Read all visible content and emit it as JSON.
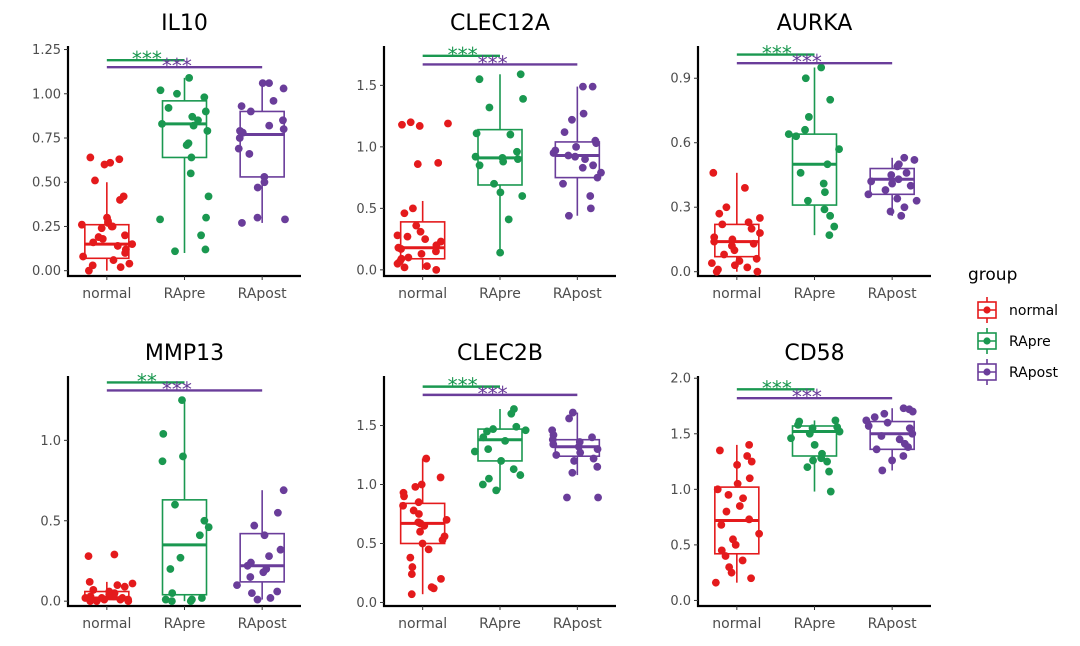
{
  "legend": {
    "title": "group",
    "items": [
      {
        "label": "normal",
        "color": "#e41a1c"
      },
      {
        "label": "RApre",
        "color": "#1a9850"
      },
      {
        "label": "RApost",
        "color": "#6a3d9a"
      }
    ]
  },
  "chart_data": [
    {
      "type": "box",
      "title": "IL10",
      "categories": [
        "normal",
        "RApre",
        "RApost"
      ],
      "ylim": [
        -0.03,
        1.27
      ],
      "yticks": [
        0.0,
        0.25,
        0.5,
        0.75,
        1.0,
        1.25
      ],
      "ytick_labels": [
        "0.00",
        "0.25",
        "0.50",
        "0.75",
        "1.00",
        "1.25"
      ],
      "boxes": [
        {
          "q1": 0.07,
          "median": 0.15,
          "q3": 0.26,
          "lower": 0.0,
          "upper": 0.5
        },
        {
          "q1": 0.64,
          "median": 0.83,
          "q3": 0.96,
          "lower": 0.1,
          "upper": 1.09
        },
        {
          "q1": 0.53,
          "median": 0.77,
          "q3": 0.9,
          "lower": 0.27,
          "upper": 1.06
        }
      ],
      "points": [
        [
          0.64,
          0.63,
          0.61,
          0.6,
          0.51,
          0.42,
          0.4,
          0.3,
          0.28,
          0.27,
          0.26,
          0.25,
          0.25,
          0.24,
          0.2,
          0.19,
          0.18,
          0.16,
          0.15,
          0.14,
          0.12,
          0.1,
          0.08,
          0.06,
          0.04,
          0.03,
          0.02,
          0.0
        ],
        [
          1.09,
          1.02,
          1.0,
          0.98,
          0.92,
          0.9,
          0.87,
          0.85,
          0.83,
          0.82,
          0.79,
          0.72,
          0.71,
          0.64,
          0.55,
          0.42,
          0.3,
          0.29,
          0.2,
          0.12,
          0.11
        ],
        [
          1.06,
          1.06,
          1.03,
          0.96,
          0.93,
          0.9,
          0.85,
          0.82,
          0.8,
          0.79,
          0.78,
          0.75,
          0.69,
          0.66,
          0.53,
          0.5,
          0.47,
          0.3,
          0.29,
          0.27
        ]
      ],
      "significance": [
        {
          "label": "***",
          "from": "normal",
          "to": "RApre",
          "y": 1.19,
          "color": "#1a9850"
        },
        {
          "label": "***",
          "from": "normal",
          "to": "RApost",
          "y": 1.15,
          "color": "#6a3d9a"
        }
      ]
    },
    {
      "type": "box",
      "title": "CLEC12A",
      "categories": [
        "normal",
        "RApre",
        "RApost"
      ],
      "ylim": [
        -0.05,
        1.82
      ],
      "yticks": [
        0.0,
        0.5,
        1.0,
        1.5
      ],
      "ytick_labels": [
        "0.0",
        "0.5",
        "1.0",
        "1.5"
      ],
      "boxes": [
        {
          "q1": 0.09,
          "median": 0.18,
          "q3": 0.39,
          "lower": 0.0,
          "upper": 0.56
        },
        {
          "q1": 0.69,
          "median": 0.91,
          "q3": 1.14,
          "lower": 0.14,
          "upper": 1.59
        },
        {
          "q1": 0.75,
          "median": 0.93,
          "q3": 1.04,
          "lower": 0.44,
          "upper": 1.49
        }
      ],
      "points": [
        [
          1.2,
          1.19,
          1.18,
          1.17,
          0.87,
          0.86,
          0.5,
          0.46,
          0.36,
          0.31,
          0.28,
          0.27,
          0.25,
          0.23,
          0.2,
          0.18,
          0.17,
          0.15,
          0.13,
          0.1,
          0.09,
          0.07,
          0.05,
          0.03,
          0.02,
          0.0
        ],
        [
          1.59,
          1.55,
          1.39,
          1.32,
          1.11,
          1.1,
          0.96,
          0.92,
          0.91,
          0.9,
          0.88,
          0.85,
          0.7,
          0.63,
          0.6,
          0.41,
          0.14
        ],
        [
          1.49,
          1.49,
          1.27,
          1.22,
          1.12,
          1.05,
          1.03,
          1.0,
          0.97,
          0.95,
          0.93,
          0.92,
          0.9,
          0.85,
          0.83,
          0.79,
          0.75,
          0.7,
          0.6,
          0.5,
          0.44
        ]
      ],
      "significance": [
        {
          "label": "***",
          "from": "normal",
          "to": "RApre",
          "y": 1.74,
          "color": "#1a9850"
        },
        {
          "label": "***",
          "from": "normal",
          "to": "RApost",
          "y": 1.67,
          "color": "#6a3d9a"
        }
      ]
    },
    {
      "type": "box",
      "title": "AURKA",
      "categories": [
        "normal",
        "RApre",
        "RApost"
      ],
      "ylim": [
        -0.02,
        1.05
      ],
      "yticks": [
        0.0,
        0.3,
        0.6,
        0.9
      ],
      "ytick_labels": [
        "0.0",
        "0.3",
        "0.6",
        "0.9"
      ],
      "boxes": [
        {
          "q1": 0.07,
          "median": 0.14,
          "q3": 0.22,
          "lower": 0.0,
          "upper": 0.46
        },
        {
          "q1": 0.31,
          "median": 0.5,
          "q3": 0.64,
          "lower": 0.17,
          "upper": 0.95
        },
        {
          "q1": 0.36,
          "median": 0.43,
          "q3": 0.48,
          "lower": 0.26,
          "upper": 0.53
        }
      ],
      "points": [
        [
          0.46,
          0.39,
          0.3,
          0.27,
          0.25,
          0.23,
          0.22,
          0.2,
          0.18,
          0.16,
          0.15,
          0.14,
          0.13,
          0.12,
          0.1,
          0.08,
          0.06,
          0.05,
          0.04,
          0.03,
          0.02,
          0.01,
          0.0,
          0.0
        ],
        [
          0.95,
          0.9,
          0.8,
          0.72,
          0.66,
          0.64,
          0.63,
          0.57,
          0.5,
          0.46,
          0.41,
          0.37,
          0.33,
          0.29,
          0.26,
          0.21,
          0.17
        ],
        [
          0.53,
          0.52,
          0.5,
          0.49,
          0.46,
          0.45,
          0.43,
          0.42,
          0.41,
          0.4,
          0.38,
          0.36,
          0.34,
          0.33,
          0.3,
          0.28,
          0.26
        ]
      ],
      "significance": [
        {
          "label": "***",
          "from": "normal",
          "to": "RApre",
          "y": 1.01,
          "color": "#1a9850"
        },
        {
          "label": "***",
          "from": "normal",
          "to": "RApost",
          "y": 0.97,
          "color": "#6a3d9a"
        }
      ]
    },
    {
      "type": "box",
      "title": "MMP13",
      "categories": [
        "normal",
        "RApre",
        "RApost"
      ],
      "ylim": [
        -0.03,
        1.4
      ],
      "yticks": [
        0.0,
        0.5,
        1.0
      ],
      "ytick_labels": [
        "0.0",
        "0.5",
        "1.0"
      ],
      "boxes": [
        {
          "q1": 0.01,
          "median": 0.02,
          "q3": 0.06,
          "lower": 0.0,
          "upper": 0.12
        },
        {
          "q1": 0.04,
          "median": 0.35,
          "q3": 0.63,
          "lower": 0.0,
          "upper": 1.25
        },
        {
          "q1": 0.12,
          "median": 0.22,
          "q3": 0.42,
          "lower": 0.01,
          "upper": 0.69
        }
      ],
      "points": [
        [
          0.29,
          0.28,
          0.12,
          0.11,
          0.1,
          0.09,
          0.07,
          0.06,
          0.05,
          0.04,
          0.04,
          0.03,
          0.03,
          0.02,
          0.02,
          0.02,
          0.01,
          0.01,
          0.01,
          0.0,
          0.0,
          0.0
        ],
        [
          1.25,
          1.04,
          0.9,
          0.87,
          0.6,
          0.5,
          0.46,
          0.41,
          0.27,
          0.2,
          0.05,
          0.02,
          0.01,
          0.01,
          0.0,
          0.0
        ],
        [
          0.69,
          0.55,
          0.47,
          0.41,
          0.32,
          0.28,
          0.24,
          0.22,
          0.2,
          0.18,
          0.15,
          0.1,
          0.06,
          0.05,
          0.02,
          0.01
        ]
      ],
      "significance": [
        {
          "label": "**",
          "from": "normal",
          "to": "RApre",
          "y": 1.36,
          "color": "#1a9850"
        },
        {
          "label": "***",
          "from": "normal",
          "to": "RApost",
          "y": 1.31,
          "color": "#6a3d9a"
        }
      ]
    },
    {
      "type": "box",
      "title": "CLEC2B",
      "categories": [
        "normal",
        "RApre",
        "RApost"
      ],
      "ylim": [
        -0.03,
        1.92
      ],
      "yticks": [
        0.0,
        0.5,
        1.0,
        1.5
      ],
      "ytick_labels": [
        "0.0",
        "0.5",
        "1.0",
        "1.5"
      ],
      "boxes": [
        {
          "q1": 0.5,
          "median": 0.67,
          "q3": 0.84,
          "lower": 0.07,
          "upper": 1.22
        },
        {
          "q1": 1.2,
          "median": 1.38,
          "q3": 1.47,
          "lower": 0.95,
          "upper": 1.64
        },
        {
          "q1": 1.24,
          "median": 1.32,
          "q3": 1.38,
          "lower": 1.08,
          "upper": 1.61
        }
      ],
      "points": [
        [
          1.22,
          1.06,
          1.0,
          0.98,
          0.93,
          0.9,
          0.85,
          0.82,
          0.78,
          0.75,
          0.7,
          0.68,
          0.67,
          0.65,
          0.6,
          0.56,
          0.53,
          0.5,
          0.45,
          0.38,
          0.3,
          0.24,
          0.2,
          0.13,
          0.12,
          0.07
        ],
        [
          1.64,
          1.6,
          1.49,
          1.47,
          1.46,
          1.45,
          1.4,
          1.37,
          1.3,
          1.28,
          1.2,
          1.13,
          1.08,
          1.05,
          1.0,
          0.95
        ],
        [
          1.61,
          1.56,
          1.46,
          1.42,
          1.4,
          1.38,
          1.36,
          1.34,
          1.32,
          1.3,
          1.27,
          1.25,
          1.22,
          1.2,
          1.15,
          1.1,
          0.89,
          0.89
        ]
      ],
      "significance": [
        {
          "label": "***",
          "from": "normal",
          "to": "RApre",
          "y": 1.83,
          "color": "#1a9850"
        },
        {
          "label": "***",
          "from": "normal",
          "to": "RApost",
          "y": 1.76,
          "color": "#6a3d9a"
        }
      ]
    },
    {
      "type": "box",
      "title": "CD58",
      "categories": [
        "normal",
        "RApre",
        "RApost"
      ],
      "ylim": [
        -0.05,
        2.02
      ],
      "yticks": [
        0.0,
        0.5,
        1.0,
        1.5,
        2.0
      ],
      "ytick_labels": [
        "0.0",
        "0.5",
        "1.0",
        "1.5",
        "2.0"
      ],
      "boxes": [
        {
          "q1": 0.42,
          "median": 0.72,
          "q3": 1.02,
          "lower": 0.16,
          "upper": 1.4
        },
        {
          "q1": 1.3,
          "median": 1.52,
          "q3": 1.57,
          "lower": 0.98,
          "upper": 1.62
        },
        {
          "q1": 1.36,
          "median": 1.5,
          "q3": 1.61,
          "lower": 1.17,
          "upper": 1.73
        }
      ],
      "points": [
        [
          1.4,
          1.35,
          1.3,
          1.25,
          1.22,
          1.1,
          1.05,
          1.0,
          0.95,
          0.92,
          0.85,
          0.8,
          0.73,
          0.68,
          0.6,
          0.55,
          0.5,
          0.45,
          0.4,
          0.36,
          0.3,
          0.25,
          0.2,
          0.16
        ],
        [
          1.62,
          1.61,
          1.58,
          1.56,
          1.55,
          1.52,
          1.5,
          1.46,
          1.4,
          1.32,
          1.28,
          1.26,
          1.25,
          1.2,
          1.16,
          0.98
        ],
        [
          1.73,
          1.72,
          1.7,
          1.68,
          1.65,
          1.62,
          1.6,
          1.57,
          1.55,
          1.5,
          1.48,
          1.45,
          1.41,
          1.38,
          1.36,
          1.3,
          1.26,
          1.17
        ]
      ],
      "significance": [
        {
          "label": "***",
          "from": "normal",
          "to": "RApre",
          "y": 1.9,
          "color": "#1a9850"
        },
        {
          "label": "***",
          "from": "normal",
          "to": "RApost",
          "y": 1.82,
          "color": "#6a3d9a"
        }
      ]
    }
  ]
}
